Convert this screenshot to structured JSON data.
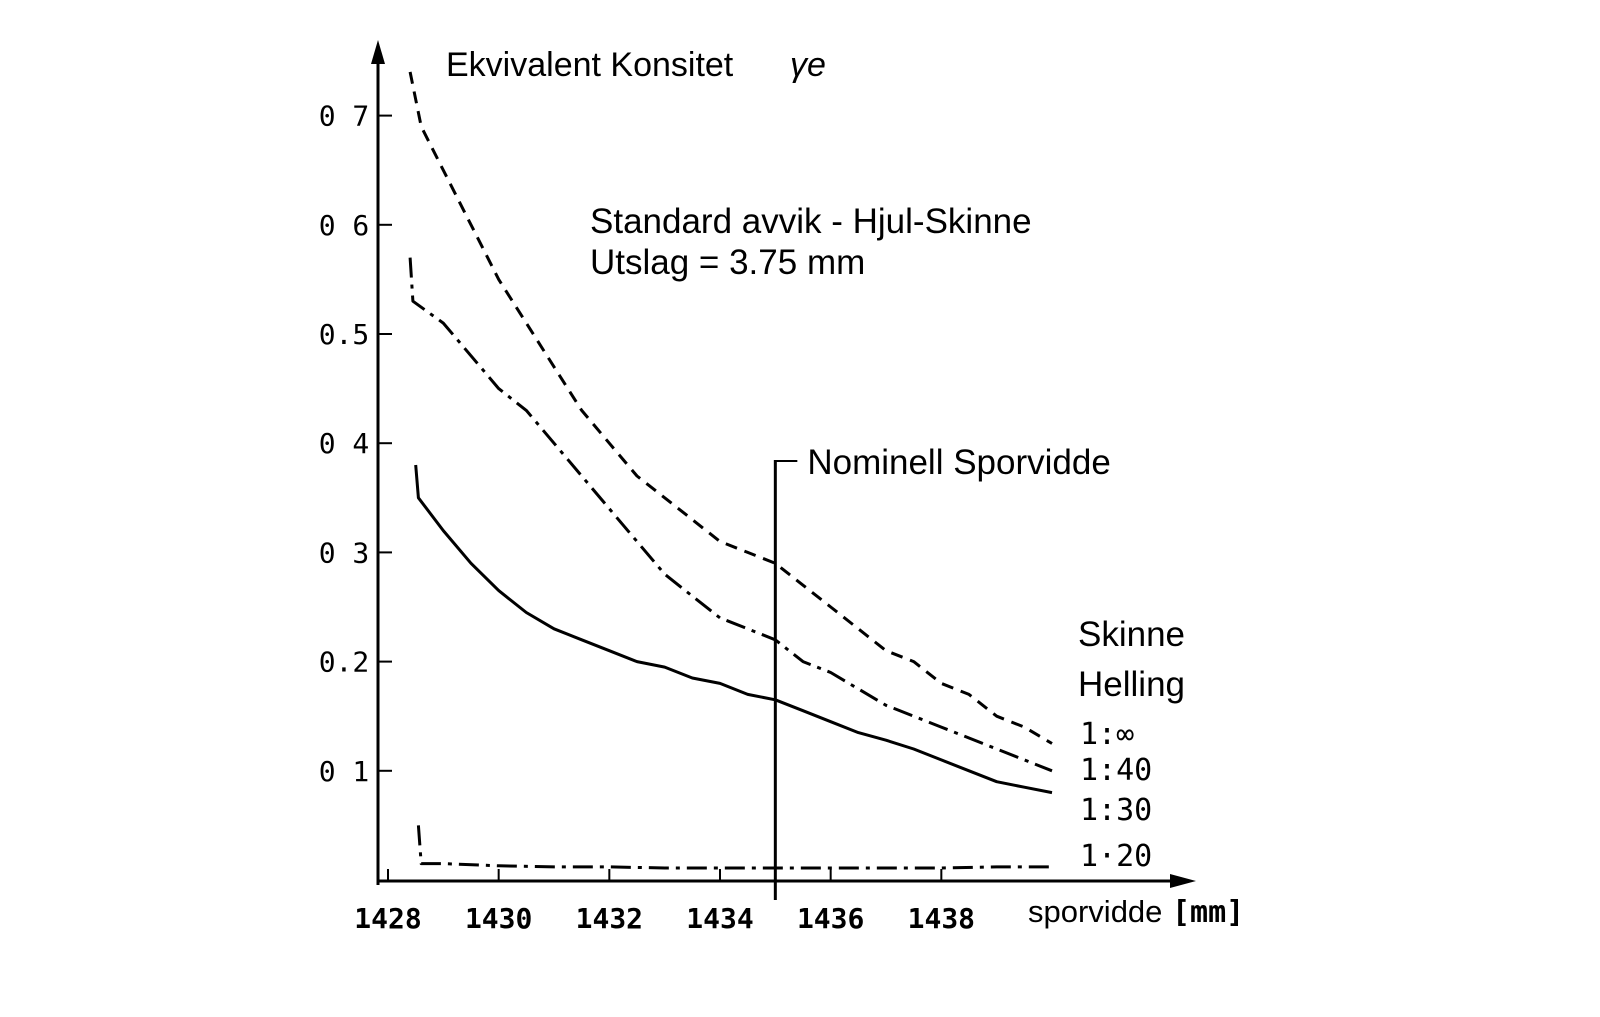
{
  "chart_data": {
    "type": "line",
    "ylabel": "Ekvivalent Konsitet",
    "ylabel_symbol": "γe",
    "xlabel": "sporvidde",
    "xunit": "[mm]",
    "annotation_lines": [
      "Standard avvik - Hjul-Skinne",
      "Utslag = 3.75 mm"
    ],
    "nominal_label": "Nominell Sporvidde",
    "nominal_x": 1435,
    "legend_title_lines": [
      "Skinne",
      "Helling"
    ],
    "xlim": [
      1428,
      1440
    ],
    "ylim": [
      0,
      0.75
    ],
    "x_ticks": [
      1428,
      1430,
      1432,
      1434,
      1436,
      1438
    ],
    "x_tick_labels": [
      "1428",
      "1430",
      "1432",
      "1434",
      "1436",
      "1438"
    ],
    "y_ticks": [
      0.1,
      0.2,
      0.3,
      0.4,
      0.5,
      0.6,
      0.7
    ],
    "y_tick_labels": [
      "0 1",
      "0.2",
      "0 3",
      "0 4",
      "0.5",
      "0 6",
      "0 7"
    ],
    "series": [
      {
        "name": "1:∞",
        "style": "dash",
        "x": [
          1428.4,
          1428.6,
          1429.0,
          1429.5,
          1430.0,
          1430.5,
          1431.0,
          1431.5,
          1432.0,
          1432.5,
          1433.0,
          1433.5,
          1434.0,
          1434.5,
          1435.0,
          1435.5,
          1436.0,
          1436.5,
          1437.0,
          1437.5,
          1438.0,
          1438.5,
          1439.0,
          1439.5,
          1440.0
        ],
        "y": [
          0.74,
          0.69,
          0.65,
          0.6,
          0.55,
          0.51,
          0.47,
          0.43,
          0.4,
          0.37,
          0.35,
          0.33,
          0.31,
          0.3,
          0.29,
          0.27,
          0.25,
          0.23,
          0.21,
          0.2,
          0.18,
          0.17,
          0.15,
          0.14,
          0.125
        ]
      },
      {
        "name": "1:40",
        "style": "dashdot",
        "x": [
          1428.4,
          1428.45,
          1429.0,
          1429.5,
          1430.0,
          1430.5,
          1431.0,
          1431.5,
          1432.0,
          1432.5,
          1433.0,
          1433.5,
          1434.0,
          1434.5,
          1435.0,
          1435.5,
          1436.0,
          1436.5,
          1437.0,
          1437.5,
          1438.0,
          1438.5,
          1439.0,
          1439.5,
          1440.0
        ],
        "y": [
          0.57,
          0.53,
          0.51,
          0.48,
          0.45,
          0.43,
          0.4,
          0.37,
          0.34,
          0.31,
          0.28,
          0.26,
          0.24,
          0.23,
          0.22,
          0.2,
          0.19,
          0.175,
          0.16,
          0.15,
          0.14,
          0.13,
          0.12,
          0.11,
          0.1
        ]
      },
      {
        "name": "1:30",
        "style": "solid",
        "x": [
          1428.5,
          1428.55,
          1429.0,
          1429.5,
          1430.0,
          1430.5,
          1431.0,
          1431.5,
          1432.0,
          1432.5,
          1433.0,
          1433.5,
          1434.0,
          1434.5,
          1435.0,
          1435.5,
          1436.0,
          1436.5,
          1437.0,
          1437.5,
          1438.0,
          1438.5,
          1439.0,
          1439.5,
          1440.0
        ],
        "y": [
          0.38,
          0.35,
          0.32,
          0.29,
          0.265,
          0.245,
          0.23,
          0.22,
          0.21,
          0.2,
          0.195,
          0.185,
          0.18,
          0.17,
          0.165,
          0.155,
          0.145,
          0.135,
          0.128,
          0.12,
          0.11,
          0.1,
          0.09,
          0.085,
          0.08
        ]
      },
      {
        "name": "1·20",
        "style": "dashdot",
        "x": [
          1428.55,
          1428.6,
          1429.0,
          1430.0,
          1431.0,
          1432.0,
          1433.0,
          1434.0,
          1435.0,
          1436.0,
          1437.0,
          1438.0,
          1439.0,
          1440.0
        ],
        "y": [
          0.05,
          0.015,
          0.015,
          0.013,
          0.012,
          0.012,
          0.011,
          0.011,
          0.011,
          0.011,
          0.011,
          0.011,
          0.012,
          0.012
        ]
      }
    ]
  }
}
